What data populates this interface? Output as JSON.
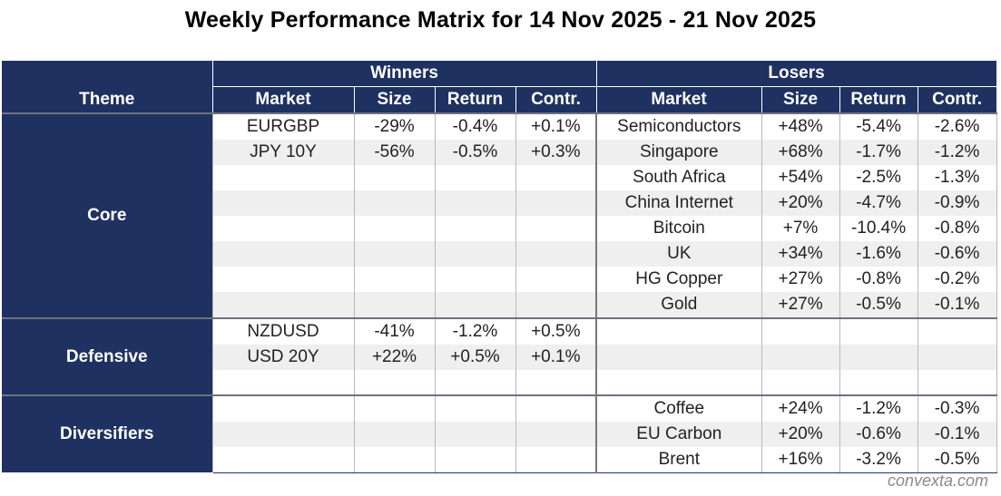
{
  "title": "Weekly Performance Matrix for 14 Nov 2025 - 21 Nov 2025",
  "headers": {
    "theme": "Theme",
    "winners": "Winners",
    "losers": "Losers",
    "market": "Market",
    "size": "Size",
    "return": "Return",
    "contr": "Contr."
  },
  "sections": [
    {
      "theme": "Core",
      "rows": [
        {
          "w_market": "EURGBP",
          "w_size": "-29%",
          "w_return": "-0.4%",
          "w_contr": "+0.1%",
          "l_market": "Semiconductors",
          "l_size": "+48%",
          "l_return": "-5.4%",
          "l_contr": "-2.6%"
        },
        {
          "w_market": "JPY 10Y",
          "w_size": "-56%",
          "w_return": "-0.5%",
          "w_contr": "+0.3%",
          "l_market": "Singapore",
          "l_size": "+68%",
          "l_return": "-1.7%",
          "l_contr": "-1.2%"
        },
        {
          "w_market": "",
          "w_size": "",
          "w_return": "",
          "w_contr": "",
          "l_market": "South Africa",
          "l_size": "+54%",
          "l_return": "-2.5%",
          "l_contr": "-1.3%"
        },
        {
          "w_market": "",
          "w_size": "",
          "w_return": "",
          "w_contr": "",
          "l_market": "China Internet",
          "l_size": "+20%",
          "l_return": "-4.7%",
          "l_contr": "-0.9%"
        },
        {
          "w_market": "",
          "w_size": "",
          "w_return": "",
          "w_contr": "",
          "l_market": "Bitcoin",
          "l_size": "+7%",
          "l_return": "-10.4%",
          "l_contr": "-0.8%"
        },
        {
          "w_market": "",
          "w_size": "",
          "w_return": "",
          "w_contr": "",
          "l_market": "UK",
          "l_size": "+34%",
          "l_return": "-1.6%",
          "l_contr": "-0.6%"
        },
        {
          "w_market": "",
          "w_size": "",
          "w_return": "",
          "w_contr": "",
          "l_market": "HG Copper",
          "l_size": "+27%",
          "l_return": "-0.8%",
          "l_contr": "-0.2%"
        },
        {
          "w_market": "",
          "w_size": "",
          "w_return": "",
          "w_contr": "",
          "l_market": "Gold",
          "l_size": "+27%",
          "l_return": "-0.5%",
          "l_contr": "-0.1%"
        }
      ]
    },
    {
      "theme": "Defensive",
      "rows": [
        {
          "w_market": "NZDUSD",
          "w_size": "-41%",
          "w_return": "-1.2%",
          "w_contr": "+0.5%",
          "l_market": "",
          "l_size": "",
          "l_return": "",
          "l_contr": ""
        },
        {
          "w_market": "USD 20Y",
          "w_size": "+22%",
          "w_return": "+0.5%",
          "w_contr": "+0.1%",
          "l_market": "",
          "l_size": "",
          "l_return": "",
          "l_contr": ""
        },
        {
          "w_market": "",
          "w_size": "",
          "w_return": "",
          "w_contr": "",
          "l_market": "",
          "l_size": "",
          "l_return": "",
          "l_contr": ""
        }
      ]
    },
    {
      "theme": "Diversifiers",
      "rows": [
        {
          "w_market": "",
          "w_size": "",
          "w_return": "",
          "w_contr": "",
          "l_market": "Coffee",
          "l_size": "+24%",
          "l_return": "-1.2%",
          "l_contr": "-0.3%"
        },
        {
          "w_market": "",
          "w_size": "",
          "w_return": "",
          "w_contr": "",
          "l_market": "EU Carbon",
          "l_size": "+20%",
          "l_return": "-0.6%",
          "l_contr": "-0.1%"
        },
        {
          "w_market": "",
          "w_size": "",
          "w_return": "",
          "w_contr": "",
          "l_market": "Brent",
          "l_size": "+16%",
          "l_return": "-3.2%",
          "l_contr": "-0.5%"
        }
      ]
    }
  ],
  "colors": {
    "header_bg": "#1e3160",
    "positive": "#3f8f3a",
    "negative": "#c1272d",
    "stripe": "#efefef"
  },
  "footer": "convexta.com"
}
